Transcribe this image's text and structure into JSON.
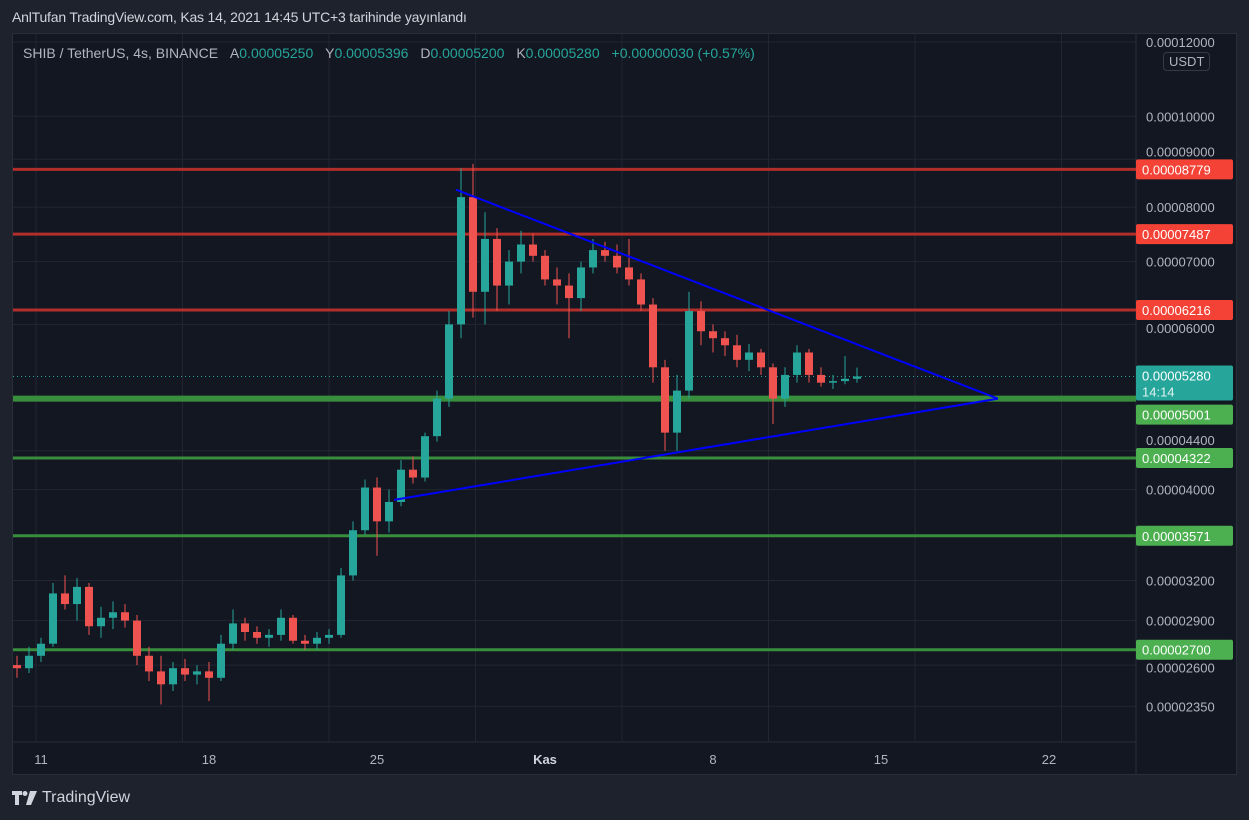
{
  "publication": "AnlTufan TradingView.com, Kas 14, 2021 14:45 UTC+3 tarihinde yayınlandı",
  "legend": {
    "symbol": "SHIB / TetherUS, 4s, BINANCE",
    "open_label": "A",
    "open": "0.00005250",
    "high_label": "Y",
    "high": "0.00005396",
    "low_label": "D",
    "low": "0.00005200",
    "close_label": "K",
    "close": "0.00005280",
    "change": "+0.00000030 (+0.57%)"
  },
  "currency_unit": "USDT",
  "footer": {
    "brand": "TradingView"
  },
  "colors": {
    "up": "#26a69a",
    "down": "#ef5350",
    "resistance": "#b22e2a",
    "resistance_badge": "#f44336",
    "support": "#388e3c",
    "support_badge": "#4caf50",
    "trendline": "#0000ff",
    "current_price": "#26a69a"
  },
  "chart_data": {
    "type": "candlestick",
    "y_scale": "log",
    "ylim": [
      2.2e-05,
      0.000125
    ],
    "xlim": [
      "2021-10-10T00:00",
      "2021-11-24T06:00"
    ],
    "grid": true,
    "y_ticks": [
      "0.00012000",
      "0.00010000",
      "0.00009000",
      "0.00008000",
      "0.00007000",
      "0.00006000",
      "0.00004400",
      "0.00004000",
      "0.00003200",
      "0.00002900",
      "0.00002600",
      "0.00002350"
    ],
    "x_ticks": [
      {
        "date": "2021-10-11",
        "label": "11",
        "bold": false
      },
      {
        "date": "2021-10-18",
        "label": "18",
        "bold": false
      },
      {
        "date": "2021-10-25",
        "label": "25",
        "bold": false
      },
      {
        "date": "2021-11-01",
        "label": "Kas",
        "bold": true
      },
      {
        "date": "2021-11-08",
        "label": "8",
        "bold": false
      },
      {
        "date": "2021-11-15",
        "label": "15",
        "bold": false
      },
      {
        "date": "2021-11-22",
        "label": "22",
        "bold": false
      }
    ],
    "candles_columns": [
      "time",
      "open",
      "high",
      "low",
      "close"
    ],
    "candles": [
      [
        "2021-10-10T00:00",
        2.6e-05,
        2.66e-05,
        2.52e-05,
        2.58e-05
      ],
      [
        "2021-10-10T12:00",
        2.58e-05,
        2.72e-05,
        2.55e-05,
        2.66e-05
      ],
      [
        "2021-10-11T00:00",
        2.66e-05,
        2.78e-05,
        2.62e-05,
        2.74e-05
      ],
      [
        "2021-10-11T12:00",
        2.74e-05,
        3.18e-05,
        2.72e-05,
        3.1e-05
      ],
      [
        "2021-10-12T00:00",
        3.1e-05,
        3.24e-05,
        2.98e-05,
        3.02e-05
      ],
      [
        "2021-10-12T12:00",
        3.02e-05,
        3.22e-05,
        2.9e-05,
        3.15e-05
      ],
      [
        "2021-10-13T00:00",
        3.15e-05,
        3.18e-05,
        2.8e-05,
        2.86e-05
      ],
      [
        "2021-10-13T12:00",
        2.86e-05,
        3e-05,
        2.78e-05,
        2.92e-05
      ],
      [
        "2021-10-14T00:00",
        2.92e-05,
        3.04e-05,
        2.84e-05,
        2.96e-05
      ],
      [
        "2021-10-14T12:00",
        2.96e-05,
        3.02e-05,
        2.85e-05,
        2.9e-05
      ],
      [
        "2021-10-15T00:00",
        2.9e-05,
        2.94e-05,
        2.6e-05,
        2.66e-05
      ],
      [
        "2021-10-15T12:00",
        2.66e-05,
        2.72e-05,
        2.5e-05,
        2.56e-05
      ],
      [
        "2021-10-16T00:00",
        2.56e-05,
        2.66e-05,
        2.36e-05,
        2.48e-05
      ],
      [
        "2021-10-16T12:00",
        2.48e-05,
        2.62e-05,
        2.44e-05,
        2.58e-05
      ],
      [
        "2021-10-17T00:00",
        2.58e-05,
        2.64e-05,
        2.5e-05,
        2.54e-05
      ],
      [
        "2021-10-17T12:00",
        2.54e-05,
        2.6e-05,
        2.48e-05,
        2.56e-05
      ],
      [
        "2021-10-18T00:00",
        2.56e-05,
        2.62e-05,
        2.38e-05,
        2.52e-05
      ],
      [
        "2021-10-18T12:00",
        2.52e-05,
        2.8e-05,
        2.5e-05,
        2.74e-05
      ],
      [
        "2021-10-19T00:00",
        2.74e-05,
        2.98e-05,
        2.7e-05,
        2.88e-05
      ],
      [
        "2021-10-19T12:00",
        2.88e-05,
        2.92e-05,
        2.76e-05,
        2.82e-05
      ],
      [
        "2021-10-20T00:00",
        2.82e-05,
        2.86e-05,
        2.74e-05,
        2.78e-05
      ],
      [
        "2021-10-20T12:00",
        2.78e-05,
        2.84e-05,
        2.72e-05,
        2.8e-05
      ],
      [
        "2021-10-21T00:00",
        2.8e-05,
        2.98e-05,
        2.76e-05,
        2.92e-05
      ],
      [
        "2021-10-21T12:00",
        2.92e-05,
        2.94e-05,
        2.74e-05,
        2.76e-05
      ],
      [
        "2021-10-22T00:00",
        2.76e-05,
        2.8e-05,
        2.7e-05,
        2.74e-05
      ],
      [
        "2021-10-22T12:00",
        2.74e-05,
        2.82e-05,
        2.7e-05,
        2.78e-05
      ],
      [
        "2021-10-23T00:00",
        2.78e-05,
        2.84e-05,
        2.74e-05,
        2.8e-05
      ],
      [
        "2021-10-23T12:00",
        2.8e-05,
        3.3e-05,
        2.78e-05,
        3.24e-05
      ],
      [
        "2021-10-24T00:00",
        3.24e-05,
        3.7e-05,
        3.2e-05,
        3.62e-05
      ],
      [
        "2021-10-24T12:00",
        3.62e-05,
        4.1e-05,
        3.58e-05,
        4.02e-05
      ],
      [
        "2021-10-25T00:00",
        4.02e-05,
        4.12e-05,
        3.4e-05,
        3.7e-05
      ],
      [
        "2021-10-25T12:00",
        3.7e-05,
        4e-05,
        3.6e-05,
        3.88e-05
      ],
      [
        "2021-10-26T00:00",
        3.88e-05,
        4.3e-05,
        3.84e-05,
        4.2e-05
      ],
      [
        "2021-10-26T12:00",
        4.2e-05,
        4.34e-05,
        4.06e-05,
        4.12e-05
      ],
      [
        "2021-10-27T00:00",
        4.12e-05,
        4.6e-05,
        4.08e-05,
        4.56e-05
      ],
      [
        "2021-10-27T12:00",
        4.56e-05,
        5.1e-05,
        4.5e-05,
        5e-05
      ],
      [
        "2021-10-28T00:00",
        5e-05,
        6.2e-05,
        4.9e-05,
        6e-05
      ],
      [
        "2021-10-28T12:00",
        6e-05,
        8.8e-05,
        5.8e-05,
        8.2e-05
      ],
      [
        "2021-10-29T00:00",
        8.2e-05,
        8.9e-05,
        6.1e-05,
        6.5e-05
      ],
      [
        "2021-10-29T12:00",
        6.5e-05,
        7.9e-05,
        6e-05,
        7.4e-05
      ],
      [
        "2021-10-30T00:00",
        7.4e-05,
        7.6e-05,
        6.2e-05,
        6.6e-05
      ],
      [
        "2021-10-30T12:00",
        6.6e-05,
        7.2e-05,
        6.3e-05,
        7e-05
      ],
      [
        "2021-10-31T00:00",
        7e-05,
        7.55e-05,
        6.8e-05,
        7.3e-05
      ],
      [
        "2021-10-31T12:00",
        7.3e-05,
        7.5e-05,
        7e-05,
        7.1e-05
      ],
      [
        "2021-11-01T00:00",
        7.1e-05,
        7.2e-05,
        6.6e-05,
        6.7e-05
      ],
      [
        "2021-11-01T12:00",
        6.7e-05,
        6.9e-05,
        6.3e-05,
        6.6e-05
      ],
      [
        "2021-11-02T00:00",
        6.6e-05,
        6.8e-05,
        5.8e-05,
        6.4e-05
      ],
      [
        "2021-11-02T12:00",
        6.4e-05,
        7e-05,
        6.2e-05,
        6.9e-05
      ],
      [
        "2021-11-03T00:00",
        6.9e-05,
        7.4e-05,
        6.8e-05,
        7.2e-05
      ],
      [
        "2021-11-03T12:00",
        7.2e-05,
        7.35e-05,
        7e-05,
        7.1e-05
      ],
      [
        "2021-11-04T00:00",
        7.1e-05,
        7.3e-05,
        6.8e-05,
        6.9e-05
      ],
      [
        "2021-11-04T12:00",
        6.9e-05,
        7.4e-05,
        6.6e-05,
        6.7e-05
      ],
      [
        "2021-11-05T00:00",
        6.7e-05,
        6.8e-05,
        6.2e-05,
        6.3e-05
      ],
      [
        "2021-11-05T12:00",
        6.3e-05,
        6.4e-05,
        5.2e-05,
        5.4e-05
      ],
      [
        "2021-11-06T00:00",
        5.4e-05,
        5.5e-05,
        4.4e-05,
        4.6e-05
      ],
      [
        "2021-11-06T12:00",
        4.6e-05,
        5.3e-05,
        4.4e-05,
        5.1e-05
      ],
      [
        "2021-11-07T00:00",
        5.1e-05,
        6.5e-05,
        5e-05,
        6.2e-05
      ],
      [
        "2021-11-07T12:00",
        6.2e-05,
        6.35e-05,
        5.7e-05,
        5.9e-05
      ],
      [
        "2021-11-08T00:00",
        5.9e-05,
        6e-05,
        5.6e-05,
        5.8e-05
      ],
      [
        "2021-11-08T12:00",
        5.8e-05,
        5.9e-05,
        5.55e-05,
        5.7e-05
      ],
      [
        "2021-11-09T00:00",
        5.7e-05,
        5.85e-05,
        5.4e-05,
        5.5e-05
      ],
      [
        "2021-11-09T12:00",
        5.5e-05,
        5.72e-05,
        5.35e-05,
        5.6e-05
      ],
      [
        "2021-11-10T00:00",
        5.6e-05,
        5.65e-05,
        5.3e-05,
        5.4e-05
      ],
      [
        "2021-11-10T12:00",
        5.4e-05,
        5.45e-05,
        4.7e-05,
        5e-05
      ],
      [
        "2021-11-11T00:00",
        5e-05,
        5.4e-05,
        4.9e-05,
        5.3e-05
      ],
      [
        "2021-11-11T12:00",
        5.3e-05,
        5.7e-05,
        5.2e-05,
        5.6e-05
      ],
      [
        "2021-11-12T00:00",
        5.6e-05,
        5.65e-05,
        5.2e-05,
        5.3e-05
      ],
      [
        "2021-11-12T12:00",
        5.3e-05,
        5.4e-05,
        5.15e-05,
        5.2e-05
      ],
      [
        "2021-11-13T00:00",
        5.2e-05,
        5.3e-05,
        5.12e-05,
        5.22e-05
      ],
      [
        "2021-11-13T12:00",
        5.22e-05,
        5.55e-05,
        5.18e-05,
        5.25e-05
      ],
      [
        "2021-11-14T00:00",
        5.25e-05,
        5.396e-05,
        5.2e-05,
        5.28e-05
      ]
    ],
    "horizontal_levels": [
      {
        "price": "0.00008779",
        "kind": "resistance"
      },
      {
        "price": "0.00007487",
        "kind": "resistance"
      },
      {
        "price": "0.00006216",
        "kind": "resistance"
      },
      {
        "price": "0.00005001",
        "kind": "support",
        "emphasis": true
      },
      {
        "price": "0.00004322",
        "kind": "support"
      },
      {
        "price": "0.00003571",
        "kind": "support"
      },
      {
        "price": "0.00002700",
        "kind": "support"
      }
    ],
    "current_price": {
      "price": "0.00005280",
      "countdown": "14:14"
    },
    "trendlines": [
      {
        "from": [
          "2021-10-28T07:00",
          8.35e-05
        ],
        "to": [
          "2021-11-19T21:00",
          5e-05
        ]
      },
      {
        "from": [
          "2021-10-25T17:00",
          3.9e-05
        ],
        "to": [
          "2021-11-19T21:00",
          5e-05
        ]
      }
    ]
  }
}
